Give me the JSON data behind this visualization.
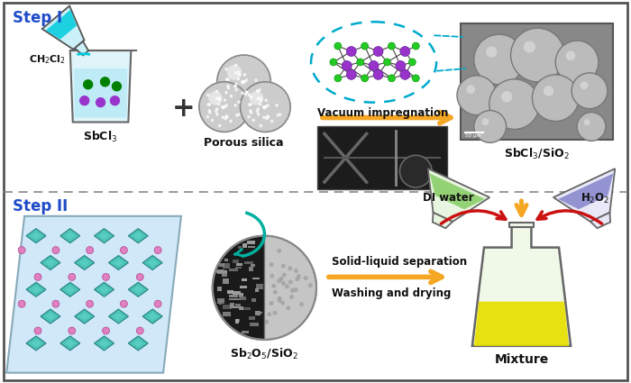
{
  "step1_label": "Step I",
  "step2_label": "Step II",
  "sbcl3_label": "SbCl$_3$",
  "ch2cl2_label": "CH$_2$Cl$_2$",
  "porous_silica_label": "Porous silica",
  "vacuum_label": "Vacuum impregnation",
  "sbcl3_sio2_label": "SbCl$_3$/SiO$_2$",
  "sb2o5_sio2_label": "Sb$_2$O$_5$/SiO$_2$",
  "mixture_label": "Mixture",
  "di_water_label": "DI water",
  "h2o2_label": "H$_2$O$_2$",
  "solid_liquid_label": "Solid-liquid separation",
  "washing_label": "Washing and drying",
  "step_color": "#1E4CC8",
  "bg_color": "#FFFFFF",
  "border_color": "#555555",
  "arrow_orange": "#F5A623",
  "arrow_teal": "#00B0A0",
  "arrow_red": "#CC1111",
  "plus_color": "#333333",
  "molecule_green": "#22CC22",
  "molecule_purple": "#9933CC",
  "liquid_cyan": "#A0E8F0",
  "flask_blue": "#00CCDD",
  "crystal_teal": "#40C0B0",
  "crystal_pink": "#E080C0",
  "flask_green_liq": "#88CC66",
  "flask_purple_liq": "#8888CC",
  "mixture_yellow": "#E8E000",
  "dashed_border": "#00AACC",
  "sem_bg": "#808080",
  "text_black": "#111111"
}
